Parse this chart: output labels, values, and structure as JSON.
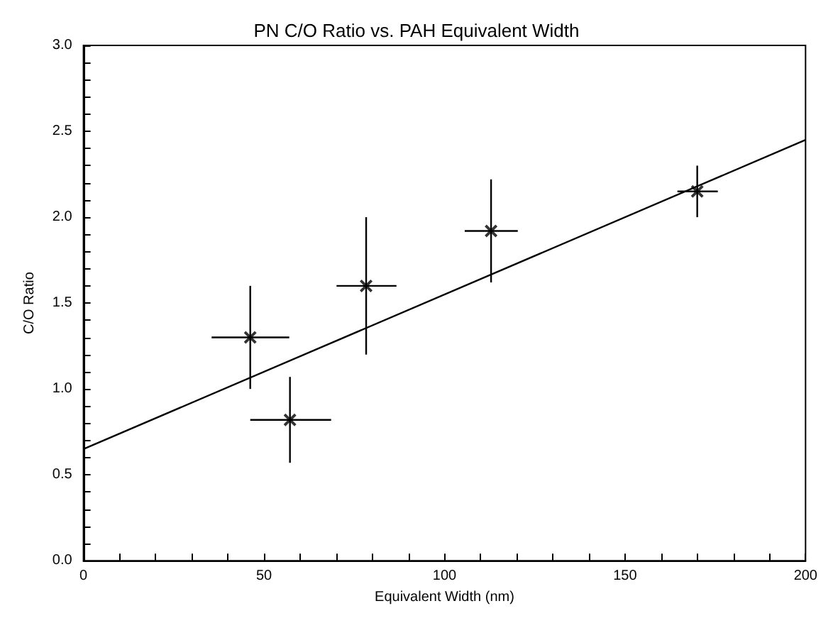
{
  "chart_data": {
    "type": "scatter",
    "title": "PN C/O Ratio vs. PAH Equivalent Width",
    "xlabel": "Equivalent Width (nm)",
    "ylabel": "C/O Ratio",
    "xlim": [
      0,
      200
    ],
    "ylim": [
      0,
      3
    ],
    "xticks": [
      0,
      {
        "value": 10,
        "label": null
      },
      {
        "value": 20,
        "label": null
      },
      {
        "value": 30,
        "label": null
      },
      {
        "value": 40,
        "label": null
      },
      50,
      {
        "value": 60,
        "label": null
      },
      {
        "value": 70,
        "label": null
      },
      {
        "value": 80,
        "label": null
      },
      {
        "value": 90,
        "label": null
      },
      100,
      {
        "value": 110,
        "label": null
      },
      {
        "value": 120,
        "label": null
      },
      {
        "value": 130,
        "label": null
      },
      {
        "value": 140,
        "label": null
      },
      150,
      {
        "value": 160,
        "label": null
      },
      {
        "value": 170,
        "label": null
      },
      {
        "value": 180,
        "label": null
      },
      {
        "value": 190,
        "label": null
      },
      200
    ],
    "yticks": [
      {
        "value": 0,
        "label": "0.0"
      },
      {
        "value": 0.1,
        "label": null
      },
      {
        "value": 0.2,
        "label": null
      },
      {
        "value": 0.3,
        "label": null
      },
      {
        "value": 0.4,
        "label": null
      },
      0.5,
      {
        "value": 0.6,
        "label": null
      },
      {
        "value": 0.7,
        "label": null
      },
      {
        "value": 0.8,
        "label": null
      },
      {
        "value": 0.9,
        "label": null
      },
      {
        "value": 1,
        "label": "1.0"
      },
      {
        "value": 1.1,
        "label": null
      },
      {
        "value": 1.2,
        "label": null
      },
      {
        "value": 1.3,
        "label": null
      },
      {
        "value": 1.4,
        "label": null
      },
      1.5,
      {
        "value": 1.6,
        "label": null
      },
      {
        "value": 1.7,
        "label": null
      },
      {
        "value": 1.8,
        "label": null
      },
      {
        "value": 1.9,
        "label": null
      },
      {
        "value": 2,
        "label": "2.0"
      },
      {
        "value": 2.1,
        "label": null
      },
      {
        "value": 2.2,
        "label": null
      },
      {
        "value": 2.3,
        "label": null
      },
      {
        "value": 2.4,
        "label": null
      },
      2.5,
      {
        "value": 2.6,
        "label": null
      },
      {
        "value": 2.7,
        "label": null
      },
      {
        "value": 2.8,
        "label": null
      },
      {
        "value": 2.9,
        "label": null
      },
      {
        "value": 3,
        "label": "3.0"
      }
    ],
    "series": [
      {
        "color": "#000000",
        "marker": "cross",
        "x": [
          46.2,
          57.2,
          78.3,
          112.9,
          170.0
        ],
        "values": [
          1.3,
          0.82,
          1.6,
          1.92,
          2.15
        ],
        "errors": [
          0.3,
          0.25,
          0.4,
          0.3,
          0.15
        ],
        "xerrors": [
          [
            35.5,
            57
          ],
          [
            46.2,
            68.6
          ],
          [
            70.1,
            86.7
          ],
          [
            105.6,
            120.3
          ],
          [
            164.5,
            175.7
          ]
        ]
      },
      {
        "type": "line",
        "color": "#000000",
        "marker": "none",
        "x": [
          0,
          200
        ],
        "values": [
          0.65,
          2.45
        ]
      }
    ]
  }
}
